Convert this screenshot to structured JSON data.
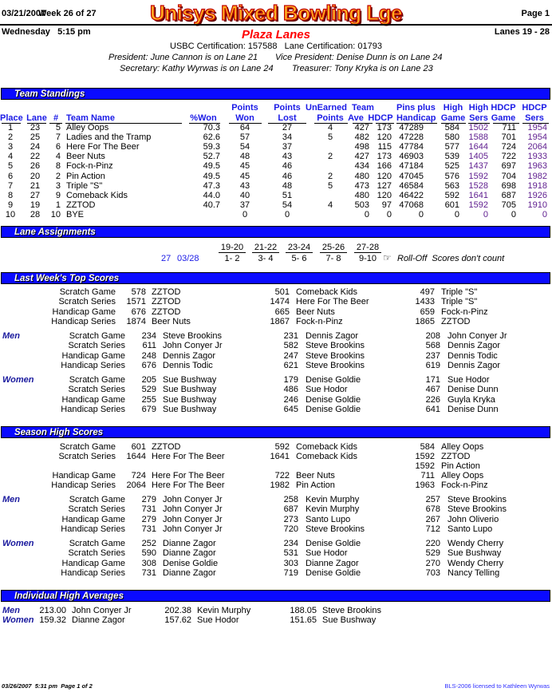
{
  "header": {
    "date": "03/21/2007",
    "week": "Week 26 of 27",
    "title": "Unisys Mixed Bowling Lge",
    "page": "Page 1",
    "day_time": "Wednesday   5:15 pm",
    "venue": "Plaza Lanes",
    "lanes": "Lanes 19 - 28",
    "certification": "USBC Certification: 157588   Lane Certification: 01793",
    "president": "President: June Cannon is on Lane 21",
    "vice_president": "Vice President: Denise Dunn is on Lane 24",
    "secretary": "Secretary: Kathy Wyrwas is on Lane 24",
    "treasurer": "Treasurer: Tony Kryka is on Lane 23"
  },
  "colors": {
    "section_bar": "#0a0aff",
    "header_text": "#1a1ae6",
    "venue": "#ff0000",
    "title_fill": "#ffb020",
    "title_outline": "#c00000"
  },
  "standings": {
    "title": "Team Standings",
    "headers_top": [
      "",
      "",
      "",
      "",
      "",
      "Points",
      "Points",
      "UnEarned",
      "Team",
      "",
      "Pins plus",
      "High",
      "High",
      "HDCP",
      "HDCP"
    ],
    "headers_bottom": [
      "Place",
      "Lane",
      "#",
      "Team Name",
      "%Won",
      "Won",
      "Lost",
      "Points",
      "Ave",
      "HDCP",
      "Handicap",
      "Game",
      "Sers",
      "Game",
      "Sers"
    ],
    "rows": [
      [
        "1",
        "23",
        "5",
        "Alley Oops",
        "70.3",
        "64",
        "27",
        "4",
        "427",
        "173",
        "47289",
        "584",
        "1502",
        "711",
        "1954"
      ],
      [
        "2",
        "25",
        "7",
        "Ladies and the Tramp",
        "62.6",
        "57",
        "34",
        "5",
        "482",
        "120",
        "47228",
        "580",
        "1588",
        "701",
        "1954"
      ],
      [
        "3",
        "24",
        "6",
        "Here For The Beer",
        "59.3",
        "54",
        "37",
        "",
        "498",
        "115",
        "47784",
        "577",
        "1644",
        "724",
        "2064"
      ],
      [
        "4",
        "22",
        "4",
        "Beer Nuts",
        "52.7",
        "48",
        "43",
        "2",
        "427",
        "173",
        "46903",
        "539",
        "1405",
        "722",
        "1933"
      ],
      [
        "5",
        "26",
        "8",
        "Fock-n-Pinz",
        "49.5",
        "45",
        "46",
        "",
        "434",
        "166",
        "47184",
        "525",
        "1437",
        "697",
        "1963"
      ],
      [
        "6",
        "20",
        "2",
        "Pin Action",
        "49.5",
        "45",
        "46",
        "2",
        "480",
        "120",
        "47045",
        "576",
        "1592",
        "704",
        "1982"
      ],
      [
        "7",
        "21",
        "3",
        "Triple \"S\"",
        "47.3",
        "43",
        "48",
        "5",
        "473",
        "127",
        "46584",
        "563",
        "1528",
        "698",
        "1918"
      ],
      [
        "8",
        "27",
        "9",
        "Comeback Kids",
        "44.0",
        "40",
        "51",
        "",
        "480",
        "120",
        "46422",
        "592",
        "1641",
        "687",
        "1926"
      ],
      [
        "9",
        "19",
        "1",
        "ZZTOD",
        "40.7",
        "37",
        "54",
        "4",
        "503",
        "97",
        "47068",
        "601",
        "1592",
        "705",
        "1910"
      ],
      [
        "10",
        "28",
        "10",
        "BYE",
        "",
        "0",
        "0",
        "",
        "0",
        "0",
        "0",
        "0",
        "0",
        "0",
        "0"
      ]
    ]
  },
  "lane_assignments": {
    "title": "Lane Assignments",
    "lane_pairs": [
      "19-20",
      "21-22",
      "23-24",
      "25-26",
      "27-28"
    ],
    "week": "27",
    "date": "03/28",
    "matchups": [
      "1- 2",
      "3- 4",
      "5- 6",
      "7- 8",
      "9-10"
    ],
    "note_icon": "pointing-hand-icon",
    "note": "Roll-Off  Scores don't count"
  },
  "last_week": {
    "title": "Last Week's Top Scores",
    "team": [
      {
        "label": "Scratch Game",
        "entries": [
          [
            "578",
            "ZZTOD"
          ],
          [
            "501",
            "Comeback Kids"
          ],
          [
            "497",
            "Triple \"S\""
          ]
        ]
      },
      {
        "label": "Scratch Series",
        "entries": [
          [
            "1571",
            "ZZTOD"
          ],
          [
            "1474",
            "Here For The Beer"
          ],
          [
            "1433",
            "Triple \"S\""
          ]
        ]
      },
      {
        "label": "Handicap Game",
        "entries": [
          [
            "676",
            "ZZTOD"
          ],
          [
            "665",
            "Beer Nuts"
          ],
          [
            "659",
            "Fock-n-Pinz"
          ]
        ]
      },
      {
        "label": "Handicap Series",
        "entries": [
          [
            "1874",
            "Beer Nuts"
          ],
          [
            "1867",
            "Fock-n-Pinz"
          ],
          [
            "1865",
            "ZZTOD"
          ]
        ]
      }
    ],
    "men": {
      "label": "Men",
      "rows": [
        {
          "label": "Scratch Game",
          "entries": [
            [
              "234",
              "Steve Brookins"
            ],
            [
              "231",
              "Dennis Zagor"
            ],
            [
              "208",
              "John Conyer Jr"
            ]
          ]
        },
        {
          "label": "Scratch Series",
          "entries": [
            [
              "611",
              "John Conyer Jr"
            ],
            [
              "582",
              "Steve Brookins"
            ],
            [
              "568",
              "Dennis Zagor"
            ]
          ]
        },
        {
          "label": "Handicap Game",
          "entries": [
            [
              "248",
              "Dennis Zagor"
            ],
            [
              "247",
              "Steve Brookins"
            ],
            [
              "237",
              "Dennis Todic"
            ]
          ]
        },
        {
          "label": "Handicap Series",
          "entries": [
            [
              "676",
              "Dennis Todic"
            ],
            [
              "621",
              "Steve Brookins"
            ],
            [
              "619",
              "Dennis Zagor"
            ]
          ]
        }
      ]
    },
    "women": {
      "label": "Women",
      "rows": [
        {
          "label": "Scratch Game",
          "entries": [
            [
              "205",
              "Sue Bushway"
            ],
            [
              "179",
              "Denise Goldie"
            ],
            [
              "171",
              "Sue Hodor"
            ]
          ]
        },
        {
          "label": "Scratch Series",
          "entries": [
            [
              "529",
              "Sue Bushway"
            ],
            [
              "486",
              "Sue Hodor"
            ],
            [
              "467",
              "Denise Dunn"
            ]
          ]
        },
        {
          "label": "Handicap Game",
          "entries": [
            [
              "255",
              "Sue Bushway"
            ],
            [
              "246",
              "Denise Goldie"
            ],
            [
              "226",
              "Guyla Kryka"
            ]
          ]
        },
        {
          "label": "Handicap Series",
          "entries": [
            [
              "679",
              "Sue Bushway"
            ],
            [
              "645",
              "Denise Goldie"
            ],
            [
              "641",
              "Denise Dunn"
            ]
          ]
        }
      ]
    }
  },
  "season_high": {
    "title": "Season High Scores",
    "team": [
      {
        "label": "Scratch Game",
        "entries": [
          [
            "601",
            "ZZTOD"
          ],
          [
            "592",
            "Comeback Kids"
          ],
          [
            "584",
            "Alley Oops"
          ]
        ]
      },
      {
        "label": "Scratch Series",
        "entries": [
          [
            "1644",
            "Here For The Beer"
          ],
          [
            "1641",
            "Comeback Kids"
          ],
          [
            "1592",
            "ZZTOD"
          ]
        ]
      },
      {
        "label": "",
        "entries": [
          null,
          null,
          [
            "1592",
            "Pin Action"
          ]
        ]
      },
      {
        "label": "Handicap Game",
        "entries": [
          [
            "724",
            "Here For The Beer"
          ],
          [
            "722",
            "Beer Nuts"
          ],
          [
            "711",
            "Alley Oops"
          ]
        ]
      },
      {
        "label": "Handicap Series",
        "entries": [
          [
            "2064",
            "Here For The Beer"
          ],
          [
            "1982",
            "Pin Action"
          ],
          [
            "1963",
            "Fock-n-Pinz"
          ]
        ]
      }
    ],
    "men": {
      "label": "Men",
      "rows": [
        {
          "label": "Scratch Game",
          "entries": [
            [
              "279",
              "John Conyer Jr"
            ],
            [
              "258",
              "Kevin Murphy"
            ],
            [
              "257",
              "Steve Brookins"
            ]
          ]
        },
        {
          "label": "Scratch Series",
          "entries": [
            [
              "731",
              "John Conyer Jr"
            ],
            [
              "687",
              "Kevin Murphy"
            ],
            [
              "678",
              "Steve Brookins"
            ]
          ]
        },
        {
          "label": "Handicap Game",
          "entries": [
            [
              "279",
              "John Conyer Jr"
            ],
            [
              "273",
              "Santo Lupo"
            ],
            [
              "267",
              "John Oliverio"
            ]
          ]
        },
        {
          "label": "Handicap Series",
          "entries": [
            [
              "731",
              "John Conyer Jr"
            ],
            [
              "720",
              "Steve Brookins"
            ],
            [
              "712",
              "Santo Lupo"
            ]
          ]
        }
      ]
    },
    "women": {
      "label": "Women",
      "rows": [
        {
          "label": "Scratch Game",
          "entries": [
            [
              "252",
              "Dianne Zagor"
            ],
            [
              "234",
              "Denise Goldie"
            ],
            [
              "220",
              "Wendy Cherry"
            ]
          ]
        },
        {
          "label": "Scratch Series",
          "entries": [
            [
              "590",
              "Dianne Zagor"
            ],
            [
              "531",
              "Sue Hodor"
            ],
            [
              "529",
              "Sue Bushway"
            ]
          ]
        },
        {
          "label": "Handicap Game",
          "entries": [
            [
              "308",
              "Denise Goldie"
            ],
            [
              "303",
              "Dianne Zagor"
            ],
            [
              "270",
              "Wendy Cherry"
            ]
          ]
        },
        {
          "label": "Handicap Series",
          "entries": [
            [
              "731",
              "Dianne Zagor"
            ],
            [
              "719",
              "Denise Goldie"
            ],
            [
              "703",
              "Nancy Telling"
            ]
          ]
        }
      ]
    }
  },
  "high_averages": {
    "title": "Individual High Averages",
    "rows": [
      {
        "label": "Men",
        "entries": [
          [
            "213.00",
            "John Conyer Jr"
          ],
          [
            "202.38",
            "Kevin Murphy"
          ],
          [
            "188.05",
            "Steve Brookins"
          ]
        ]
      },
      {
        "label": "Women",
        "entries": [
          [
            "159.32",
            "Dianne Zagor"
          ],
          [
            "157.62",
            "Sue Hodor"
          ],
          [
            "151.65",
            "Sue Bushway"
          ]
        ]
      }
    ]
  },
  "footer": {
    "printed": "03/26/2007  5:31 pm  Page 1 of 2",
    "license": "BLS-2006 licensed to Kathleen Wyrwas"
  }
}
